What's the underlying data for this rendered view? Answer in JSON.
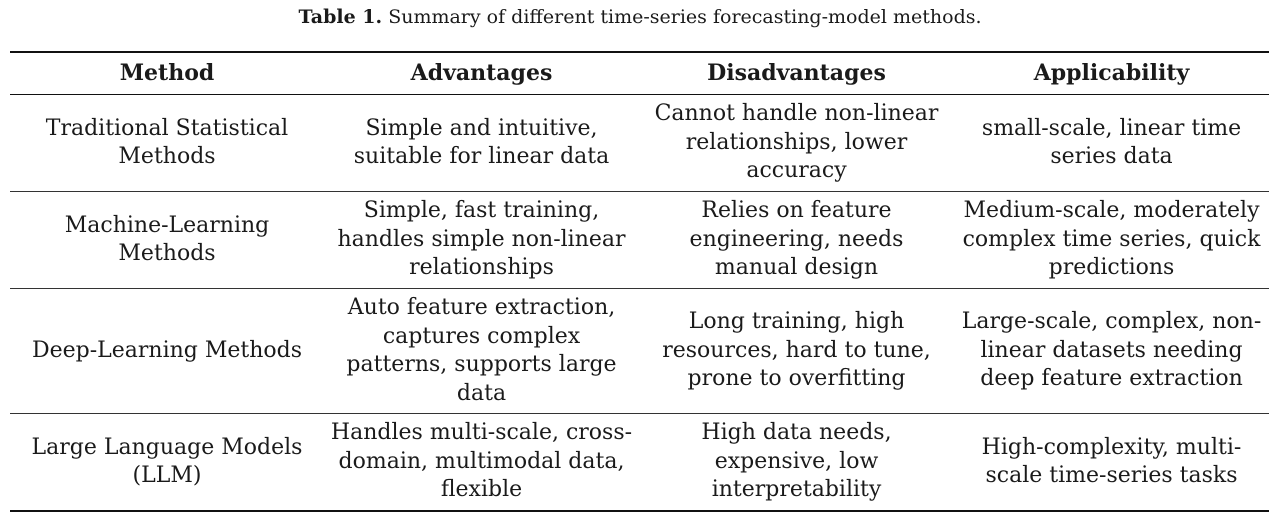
{
  "caption": {
    "label": "Table 1.",
    "text": "Summary of different time-series forecasting-model methods."
  },
  "table": {
    "headers": [
      "Method",
      "Advantages",
      "Disadvantages",
      "Applicability"
    ],
    "rows": [
      [
        "Traditional Statistical Methods",
        "Simple and intuitive, suitable for linear data",
        "Cannot handle non-linear relationships, lower accuracy",
        "small-scale, linear time series data"
      ],
      [
        "Machine-Learning Methods",
        "Simple, fast training, handles simple non-linear relationships",
        "Relies on feature engineering, needs manual design",
        "Medium-scale, moderately complex time series, quick predictions"
      ],
      [
        "Deep-Learning Methods",
        "Auto feature extraction, captures complex patterns, supports large data",
        "Long training, high resources, hard to tune, prone to overfitting",
        "Large-scale, complex, non-linear datasets needing deep feature extraction"
      ],
      [
        "Large Language Models (LLM)",
        "Handles multi-scale, cross-domain, multimodal data, flexible",
        "High data needs, expensive, low interpretability",
        "High-complexity, multi-scale time-series tasks"
      ]
    ]
  }
}
